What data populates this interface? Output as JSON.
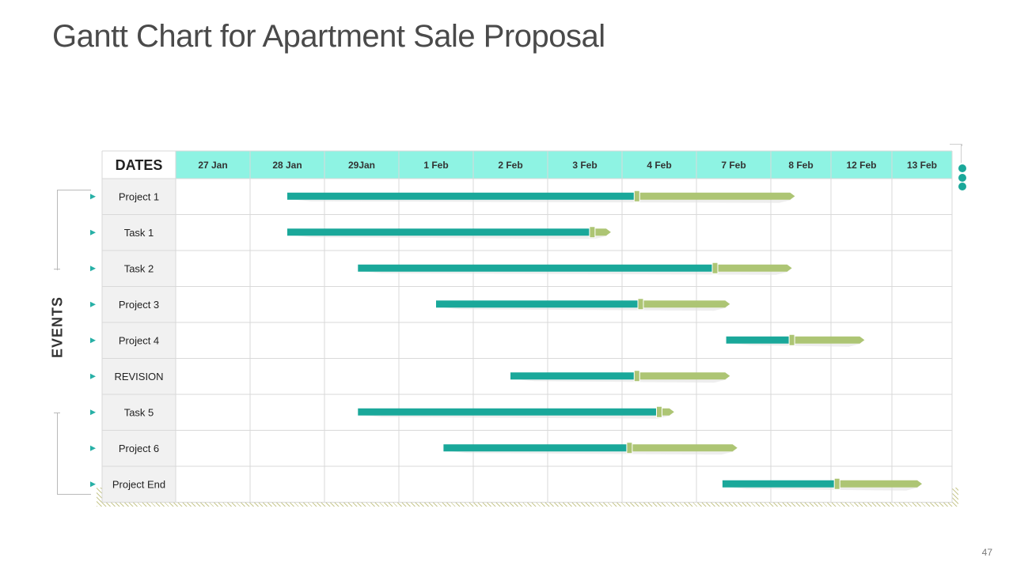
{
  "slide": {
    "title": "Gantt Chart for Apartment Sale Proposal",
    "page_number": "47",
    "events_label": "EVENTS"
  },
  "chart_data": {
    "type": "gantt",
    "corner_label": "DATES",
    "columns": [
      "27 Jan",
      "28 Jan",
      "29Jan",
      "1 Feb",
      "2 Feb",
      "3 Feb",
      "4 Feb",
      "7 Feb",
      "8 Feb",
      "12 Feb",
      "13 Feb"
    ],
    "rows": [
      {
        "label": "Project 1",
        "start": 1.5,
        "split": 6.2,
        "end": 8.4
      },
      {
        "label": "Task 1",
        "start": 1.5,
        "split": 5.6,
        "end": 5.85
      },
      {
        "label": "Task 2",
        "start": 2.45,
        "split": 7.25,
        "end": 8.35
      },
      {
        "label": "Project 3",
        "start": 3.5,
        "split": 6.25,
        "end": 7.45
      },
      {
        "label": "Project 4",
        "start": 7.4,
        "split": 8.35,
        "end": 9.55
      },
      {
        "label": "REVISION",
        "start": 4.5,
        "split": 6.2,
        "end": 7.45
      },
      {
        "label": "Task 5",
        "start": 2.45,
        "split": 6.5,
        "end": 6.7
      },
      {
        "label": "Project 6",
        "start": 3.6,
        "split": 6.1,
        "end": 7.55
      },
      {
        "label": "Project End",
        "start": 7.35,
        "split": 9.1,
        "end": 10.5
      }
    ],
    "colors": {
      "header_bg": "#8ef3e3",
      "label_bg": "#f1f1f1",
      "grid": "#d9d9d9",
      "bar_progress": "#1aa89a",
      "bar_remaining": "#adc574",
      "marker": "#adc574",
      "row_arrow": "#27b0a6"
    }
  }
}
